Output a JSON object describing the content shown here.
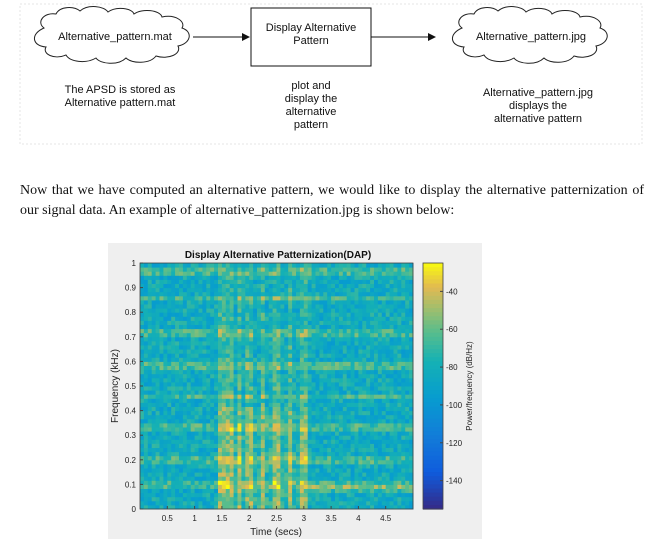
{
  "diagram": {
    "node_left": "Alternative_pattern.mat",
    "node_center": [
      "Display Alternative",
      "Pattern"
    ],
    "node_right": "Alternative_pattern.jpg",
    "caption_left": [
      "The APSD is stored as",
      "Alternative pattern.mat"
    ],
    "caption_center": [
      "plot and",
      "display the",
      "alternative",
      "pattern"
    ],
    "caption_right": [
      "Alternative_pattern.jpg",
      "displays the",
      "alternative pattern"
    ]
  },
  "paragraph": "Now that we have computed an alternative pattern, we would like to display the alternative patternization of our signal data. An example of alternative_patternization.jpg is shown below:",
  "colors": {
    "bg": "#ffffff",
    "figure_bg": "#efefef",
    "text": "#111111"
  },
  "chart_data": {
    "type": "heatmap",
    "title": "Display Alternative Patternization(DAP)",
    "xlabel": "Time (secs)",
    "ylabel": "Frequency (kHz)",
    "colorbar_label": "Power/frequency (dB/Hz)",
    "xlim": [
      0,
      5
    ],
    "ylim": [
      0,
      1
    ],
    "clim": [
      -155,
      -25
    ],
    "xticks": [
      0.5,
      1,
      1.5,
      2,
      2.5,
      3,
      3.5,
      4,
      4.5
    ],
    "xticklabels": [
      "0.5",
      "1",
      "1.5",
      "2",
      "2.5",
      "3",
      "3.5",
      "4",
      "4.5"
    ],
    "yticks": [
      0,
      0.1,
      0.2,
      0.3,
      0.4,
      0.5,
      0.6,
      0.7,
      0.8,
      0.9,
      1
    ],
    "yticklabels": [
      "0",
      "0.1",
      "0.2",
      "0.3",
      "0.4",
      "0.5",
      "0.6",
      "0.7",
      "0.8",
      "0.9",
      "1"
    ],
    "cticks": [
      -40,
      -60,
      -80,
      -100,
      -120,
      -140
    ],
    "cticklabels": [
      "-40",
      "-60",
      "-80",
      "-100",
      "-120",
      "-140"
    ],
    "colormap": "parula"
  }
}
